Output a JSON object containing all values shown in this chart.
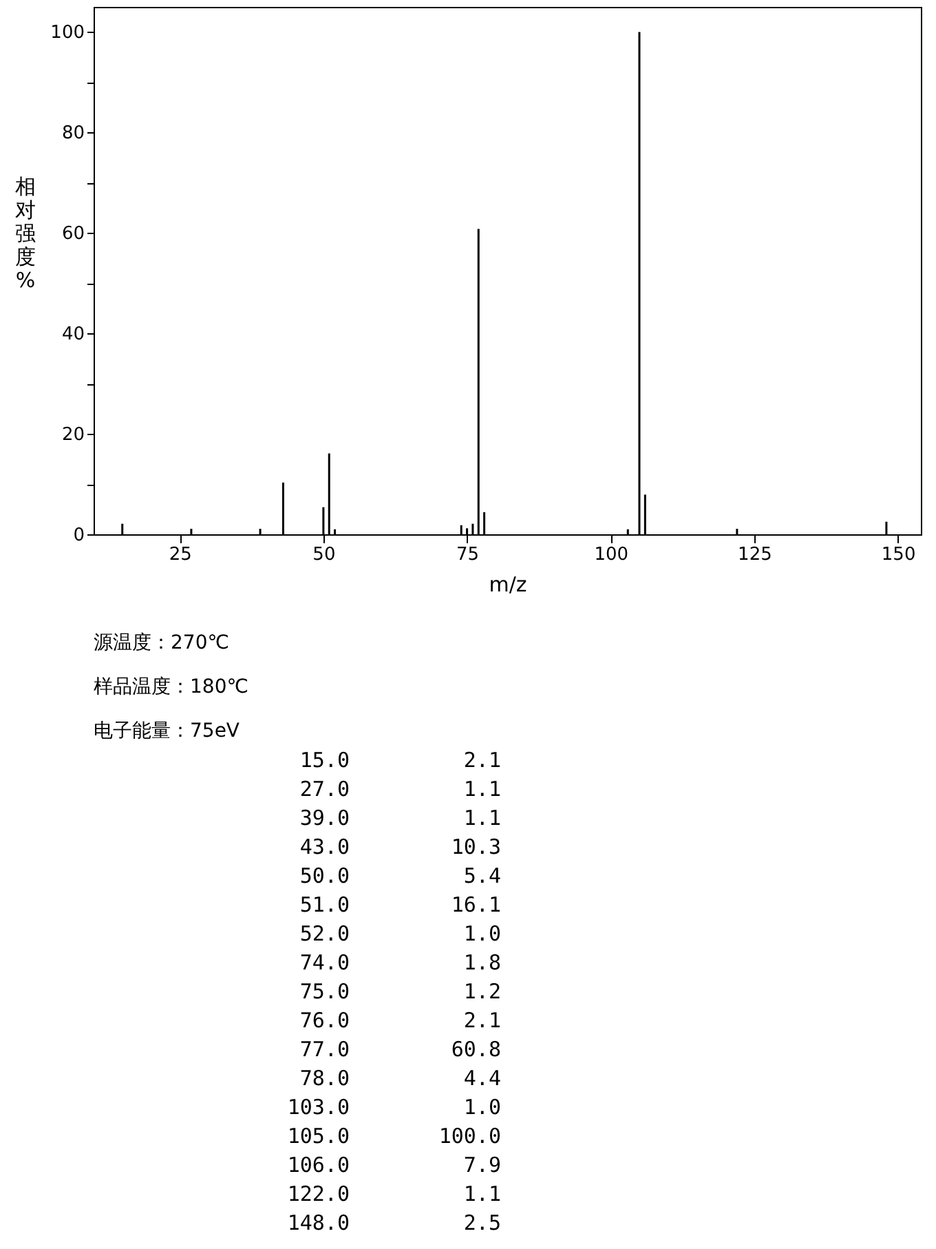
{
  "chart_data": [
    {
      "type": "bar",
      "xlabel": "m/z",
      "ylabel": "相对强度%",
      "x": [
        15,
        27,
        39,
        43,
        50,
        51,
        52,
        74,
        75,
        76,
        77,
        78,
        103,
        105,
        106,
        122,
        148
      ],
      "values": [
        2.1,
        1.1,
        1.1,
        10.3,
        5.4,
        16.1,
        1.0,
        1.8,
        1.2,
        2.1,
        60.8,
        4.4,
        1.0,
        100.0,
        7.9,
        1.1,
        2.5
      ],
      "color": "#000000",
      "xlim": [
        10,
        154
      ],
      "xticks": [
        25,
        50,
        75,
        100,
        125,
        150
      ],
      "ylim": [
        0,
        105
      ],
      "yticks": [
        0,
        {
          "value": 10,
          "label": null
        },
        20,
        {
          "value": 30,
          "label": null
        },
        40,
        {
          "value": 50,
          "label": null
        },
        60,
        {
          "value": 70,
          "label": null
        },
        80,
        {
          "value": 90,
          "label": null
        },
        100
      ],
      "grid": false
    },
    {
      "type": "other",
      "annotations": [
        "源温度：270℃",
        "样品温度：180℃",
        "电子能量：75eV"
      ],
      "categories": [
        "15.0",
        "27.0",
        "39.0",
        "43.0",
        "50.0",
        "51.0",
        "52.0",
        "74.0",
        "75.0",
        "76.0",
        "77.0",
        "78.0",
        "103.0",
        "105.0",
        "106.0",
        "122.0",
        "148.0"
      ],
      "value_labels": [
        "2.1",
        "1.1",
        "1.1",
        "10.3",
        "5.4",
        "16.1",
        "1.0",
        "1.8",
        "1.2",
        "2.1",
        "60.8",
        "4.4",
        "1.0",
        "100.0",
        "7.9",
        "1.1",
        "2.5"
      ]
    }
  ]
}
